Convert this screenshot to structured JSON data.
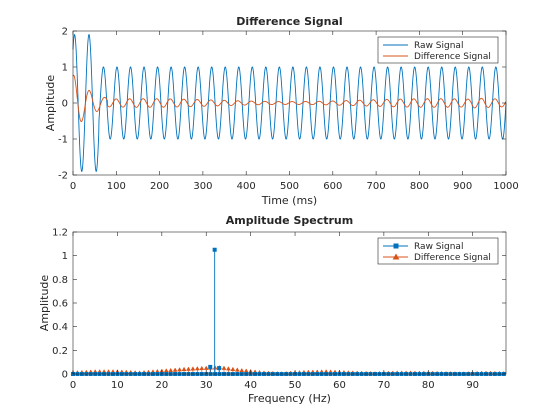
{
  "chart_data": [
    {
      "type": "line",
      "title": "Difference Signal",
      "xlabel": "Time (ms)",
      "ylabel": "Amplitude",
      "xlim": [
        0,
        1000
      ],
      "ylim": [
        -2,
        2
      ],
      "xticks": [
        0,
        100,
        200,
        300,
        400,
        500,
        600,
        700,
        800,
        900,
        1000
      ],
      "yticks": [
        -2,
        -1,
        0,
        1,
        2
      ],
      "legend_position": "top-right",
      "grid": false,
      "series": [
        {
          "name": "Raw Signal",
          "color": "#0072BD",
          "description_values": {
            "frequency_hz": 32,
            "steady_amplitude": 1,
            "initial_transient_peak": 1.9,
            "initial_transient_trough": -1.9,
            "transient_decay_ms": 60
          }
        },
        {
          "name": "Difference Signal",
          "color": "#D95319",
          "description_values": {
            "initial_peak": 0.8,
            "initial_trough": -0.7,
            "residual_amplitude": 0.1
          }
        }
      ]
    },
    {
      "type": "stem",
      "title": "Amplitude Spectrum",
      "xlabel": "Frequency (Hz)",
      "ylabel": "Amplitude",
      "xlim": [
        0,
        97.5
      ],
      "ylim": [
        0,
        1.2
      ],
      "xticks": [
        0,
        10,
        20,
        30,
        40,
        50,
        60,
        70,
        80,
        90
      ],
      "yticks": [
        0,
        0.2,
        0.4,
        0.6,
        0.8,
        1,
        1.2
      ],
      "ytick_labels": [
        "0",
        "0.2",
        "0.4",
        "0.6",
        "0.8",
        "1",
        "1.2"
      ],
      "legend_position": "top-right",
      "grid": false,
      "series": [
        {
          "name": "Raw Signal",
          "color": "#0072BD",
          "marker": "square",
          "peak": {
            "x": 31.9,
            "y": 1.05
          },
          "side_values": [
            {
              "x": 30.9,
              "y": 0.06
            },
            {
              "x": 32.9,
              "y": 0.05
            }
          ]
        },
        {
          "name": "Difference Signal",
          "color": "#D95319",
          "marker": "triangle",
          "envelope": [
            {
              "x": 0,
              "y": 0.01
            },
            {
              "x": 5,
              "y": 0.02
            },
            {
              "x": 10,
              "y": 0.02
            },
            {
              "x": 15,
              "y": 0.01
            },
            {
              "x": 20,
              "y": 0.025
            },
            {
              "x": 25,
              "y": 0.04
            },
            {
              "x": 30,
              "y": 0.05
            },
            {
              "x": 33,
              "y": 0.055
            },
            {
              "x": 38,
              "y": 0.03
            },
            {
              "x": 43,
              "y": 0.01
            },
            {
              "x": 47,
              "y": 0.003
            },
            {
              "x": 52,
              "y": 0.015
            },
            {
              "x": 57,
              "y": 0.02
            },
            {
              "x": 63,
              "y": 0.01
            },
            {
              "x": 68,
              "y": 0.004
            },
            {
              "x": 73,
              "y": 0.01
            },
            {
              "x": 80,
              "y": 0.008
            },
            {
              "x": 87,
              "y": 0.003
            },
            {
              "x": 93,
              "y": 0.008
            },
            {
              "x": 97.5,
              "y": 0.005
            }
          ]
        }
      ]
    }
  ]
}
